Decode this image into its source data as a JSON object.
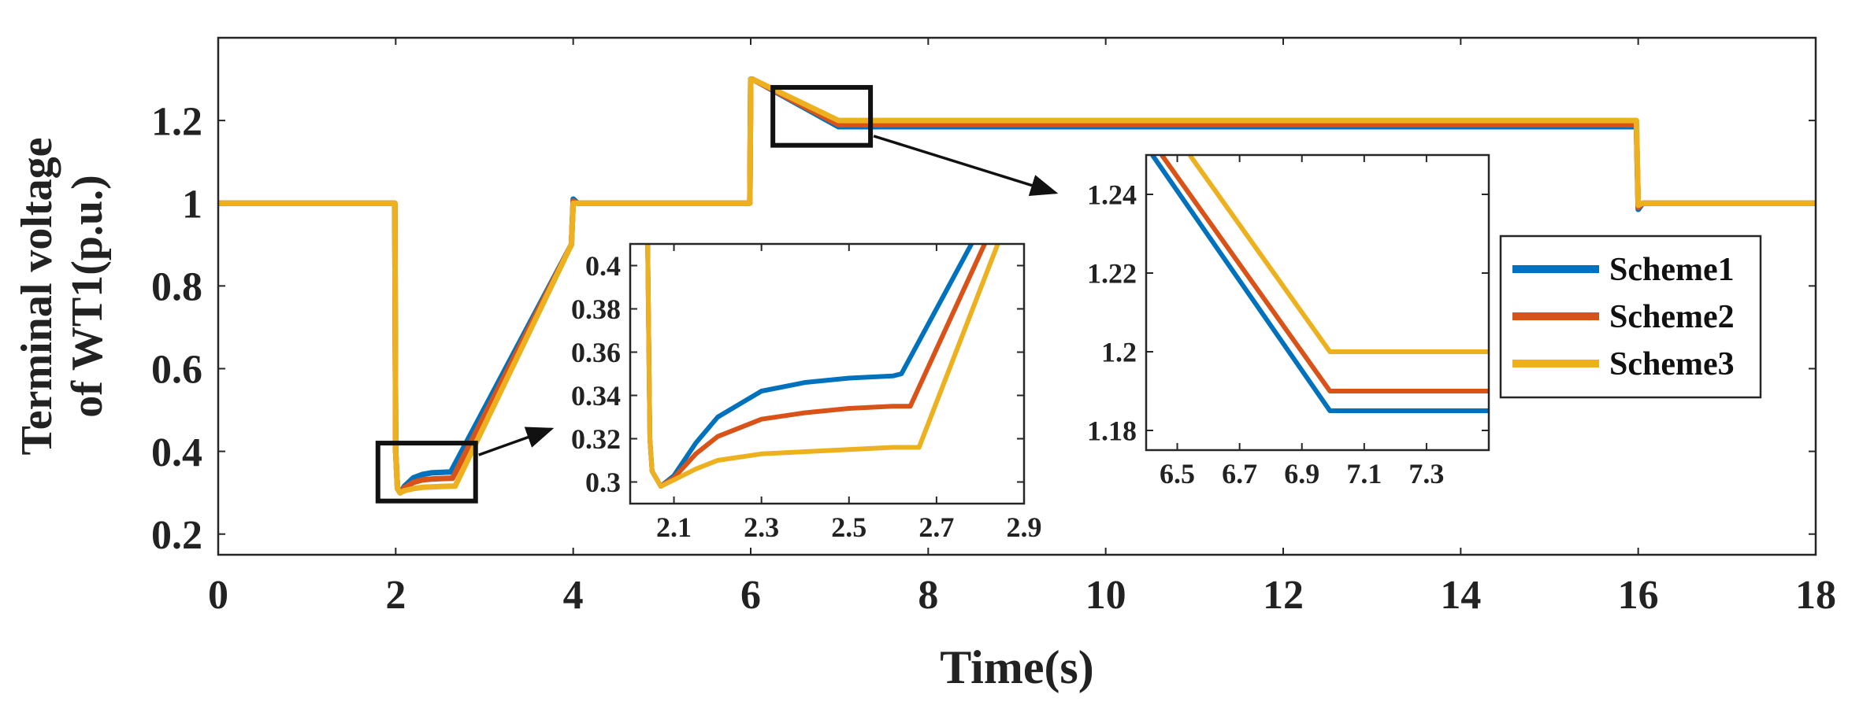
{
  "chart_data": {
    "type": "line",
    "colors": {
      "Scheme1": "#0072BD",
      "Scheme2": "#D95319",
      "Scheme3": "#EDB120",
      "axis": "#262626",
      "annotation": "#111111"
    },
    "main": {
      "xlabel": "Time(s)",
      "ylabel_lines": [
        "Terminal voltage",
        "of WT1(p.u.)"
      ],
      "xlim": [
        0,
        18
      ],
      "ylim": [
        0.15,
        1.4
      ],
      "xticks": [
        0,
        2,
        4,
        6,
        8,
        10,
        12,
        14,
        16,
        18
      ],
      "xtick_labels": [
        "0",
        "2",
        "4",
        "6",
        "8",
        "10",
        "12",
        "14",
        "16",
        "18"
      ],
      "yticks": [
        0.2,
        0.4,
        0.6,
        0.8,
        1.0,
        1.2
      ],
      "ytick_labels": [
        "0.2",
        "0.4",
        "0.6",
        "0.8",
        "1",
        "1.2"
      ],
      "series": [
        {
          "name": "Scheme1",
          "x": [
            0,
            1.99,
            2.0,
            2.02,
            2.05,
            2.1,
            2.2,
            2.3,
            2.4,
            2.5,
            2.6,
            2.62,
            3.98,
            4.0,
            4.05,
            5.99,
            6.0,
            6.02,
            6.99,
            15.98,
            16.0,
            16.05,
            18
          ],
          "y": [
            1,
            1,
            0.4,
            0.31,
            0.3,
            0.316,
            0.336,
            0.344,
            0.348,
            0.349,
            0.35,
            0.35,
            0.9,
            1.01,
            1.0,
            1.0,
            1.3,
            1.3,
            1.185,
            1.185,
            0.985,
            1.0,
            1.0
          ]
        },
        {
          "name": "Scheme2",
          "x": [
            0,
            1.99,
            2.0,
            2.02,
            2.05,
            2.1,
            2.2,
            2.3,
            2.4,
            2.5,
            2.62,
            2.64,
            3.98,
            4.0,
            4.05,
            5.99,
            6.0,
            6.02,
            6.99,
            15.98,
            16.0,
            16.05,
            18
          ],
          "y": [
            1,
            1,
            0.4,
            0.31,
            0.3,
            0.312,
            0.325,
            0.331,
            0.333,
            0.334,
            0.335,
            0.335,
            0.9,
            1.005,
            1.0,
            1.0,
            1.3,
            1.3,
            1.19,
            1.19,
            0.99,
            1.0,
            1.0
          ]
        },
        {
          "name": "Scheme3",
          "x": [
            0,
            1.99,
            2.0,
            2.02,
            2.05,
            2.1,
            2.2,
            2.3,
            2.4,
            2.5,
            2.65,
            2.67,
            3.98,
            4.0,
            4.05,
            5.99,
            6.0,
            6.02,
            6.99,
            15.98,
            16.0,
            16.05,
            18
          ],
          "y": [
            1,
            1,
            0.4,
            0.31,
            0.3,
            0.305,
            0.31,
            0.313,
            0.314,
            0.315,
            0.316,
            0.316,
            0.9,
            1.0,
            1.0,
            1.0,
            1.3,
            1.3,
            1.2,
            1.2,
            0.995,
            1.0,
            1.0
          ]
        }
      ]
    },
    "inset1": {
      "xlim": [
        2.0,
        2.9
      ],
      "ylim": [
        0.29,
        0.41
      ],
      "xticks": [
        2.1,
        2.3,
        2.5,
        2.7,
        2.9
      ],
      "xtick_labels": [
        "2.1",
        "2.3",
        "2.5",
        "2.7",
        "2.9"
      ],
      "yticks": [
        0.3,
        0.32,
        0.34,
        0.36,
        0.38,
        0.4
      ],
      "ytick_labels": [
        "0.3",
        "0.32",
        "0.34",
        "0.36",
        "0.38",
        "0.4"
      ],
      "zoom_box": {
        "x": [
          1.8,
          2.9
        ],
        "y": [
          0.28,
          0.42
        ]
      },
      "series": [
        {
          "name": "Scheme1",
          "x": [
            2.04,
            2.045,
            2.05,
            2.07,
            2.1,
            2.15,
            2.2,
            2.3,
            2.4,
            2.5,
            2.6,
            2.62,
            2.78
          ],
          "y": [
            0.41,
            0.32,
            0.305,
            0.298,
            0.303,
            0.318,
            0.33,
            0.342,
            0.346,
            0.348,
            0.349,
            0.35,
            0.41
          ]
        },
        {
          "name": "Scheme2",
          "x": [
            2.04,
            2.045,
            2.05,
            2.07,
            2.1,
            2.15,
            2.2,
            2.3,
            2.4,
            2.5,
            2.6,
            2.64,
            2.81
          ],
          "y": [
            0.41,
            0.32,
            0.305,
            0.298,
            0.302,
            0.313,
            0.321,
            0.329,
            0.332,
            0.334,
            0.335,
            0.335,
            0.41
          ]
        },
        {
          "name": "Scheme3",
          "x": [
            2.04,
            2.045,
            2.05,
            2.07,
            2.1,
            2.15,
            2.2,
            2.3,
            2.4,
            2.5,
            2.6,
            2.66,
            2.84
          ],
          "y": [
            0.41,
            0.32,
            0.305,
            0.298,
            0.301,
            0.306,
            0.31,
            0.313,
            0.314,
            0.315,
            0.316,
            0.316,
            0.41
          ]
        }
      ]
    },
    "inset2": {
      "xlim": [
        6.4,
        7.5
      ],
      "ylim": [
        1.175,
        1.25
      ],
      "xticks": [
        6.5,
        6.7,
        6.9,
        7.1,
        7.3
      ],
      "xtick_labels": [
        "6.5",
        "6.7",
        "6.9",
        "7.1",
        "7.3"
      ],
      "yticks": [
        1.18,
        1.2,
        1.22,
        1.24
      ],
      "ytick_labels": [
        "1.18",
        "1.2",
        "1.22",
        "1.24"
      ],
      "zoom_box": {
        "x": [
          6.25,
          7.35
        ],
        "y": [
          1.14,
          1.28
        ]
      },
      "series": [
        {
          "name": "Scheme1",
          "x": [
            6.42,
            6.99,
            7.5
          ],
          "y": [
            1.25,
            1.185,
            1.185
          ]
        },
        {
          "name": "Scheme2",
          "x": [
            6.45,
            6.99,
            7.5
          ],
          "y": [
            1.25,
            1.19,
            1.19
          ]
        },
        {
          "name": "Scheme3",
          "x": [
            6.54,
            6.99,
            7.5
          ],
          "y": [
            1.25,
            1.2,
            1.2
          ]
        }
      ]
    },
    "legend": {
      "entries": [
        "Scheme1",
        "Scheme2",
        "Scheme3"
      ],
      "position": "right"
    }
  }
}
